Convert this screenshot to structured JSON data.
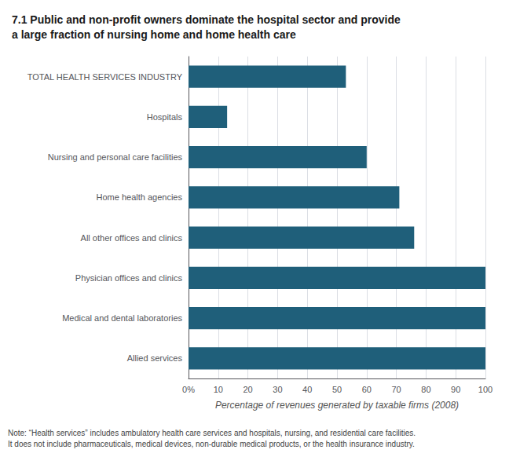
{
  "chart_data": {
    "type": "bar",
    "orientation": "horizontal",
    "title": "7.1 Public and non-profit owners dominate the hospital sector and provide\na large fraction of nursing home and home health care",
    "categories": [
      "TOTAL HEALTH SERVICES INDUSTRY",
      "Hospitals",
      "Nursing and personal care facilities",
      "Home health agencies",
      "All other offices and clinics",
      "Physician offices and clinics",
      "Medical and dental laboratories",
      "Allied services"
    ],
    "values": [
      53,
      13,
      60,
      71,
      76,
      100,
      100,
      100
    ],
    "color": "#1F5F7A",
    "xlabel": "Percentage of revenues generated by taxable firms (2008)",
    "xlim": [
      0,
      100
    ],
    "xticks": [
      {
        "value": 0,
        "label": "0%"
      },
      10,
      20,
      30,
      40,
      50,
      60,
      70,
      80,
      90,
      100
    ],
    "grid": true,
    "annotations": [
      "Note: “Health services” includes ambulatory health care services and hospitals, nursing, and residential care facilities.\nIt does not include pharmaceuticals, medical devices, non-durable medical products, or the health insurance industry."
    ]
  }
}
